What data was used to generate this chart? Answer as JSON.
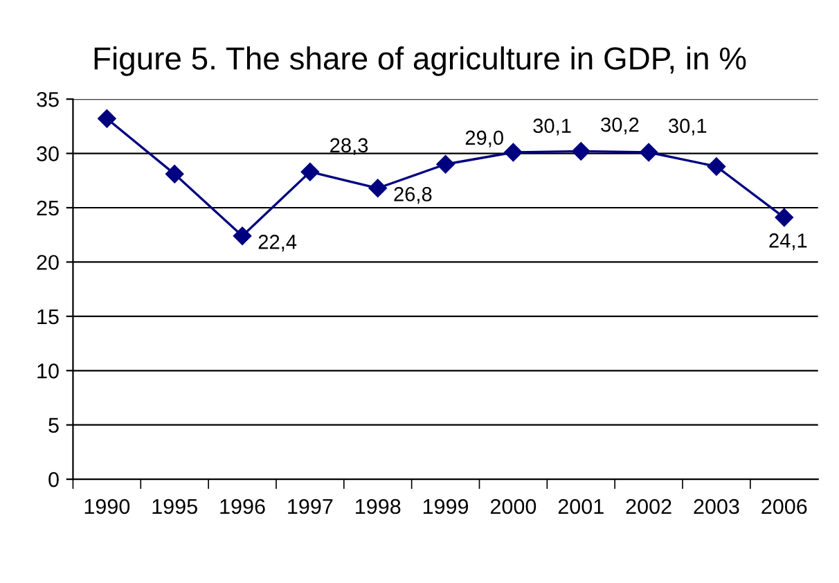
{
  "chart_data": {
    "type": "line",
    "title": "Figure 5. The share of agriculture in GDP, in %",
    "categories": [
      "1990",
      "1995",
      "1996",
      "1997",
      "1998",
      "1999",
      "2000",
      "2001",
      "2002",
      "2003",
      "2006"
    ],
    "series": [
      {
        "color": "#000080",
        "values": [
          33.2,
          28.1,
          22.4,
          28.3,
          26.8,
          29.0,
          30.1,
          30.2,
          30.1,
          28.8,
          24.1
        ],
        "value_labels": [
          null,
          null,
          "22,4",
          "28,3",
          "26,8",
          "29,0",
          "30,1",
          "30,2",
          "30,1",
          null,
          "24,1"
        ]
      }
    ],
    "ylim": [
      0,
      35
    ],
    "yticks": [
      0,
      5,
      10,
      15,
      20,
      25,
      30,
      35
    ],
    "grid": "y",
    "marker": "diamond",
    "line_style": "solid"
  }
}
